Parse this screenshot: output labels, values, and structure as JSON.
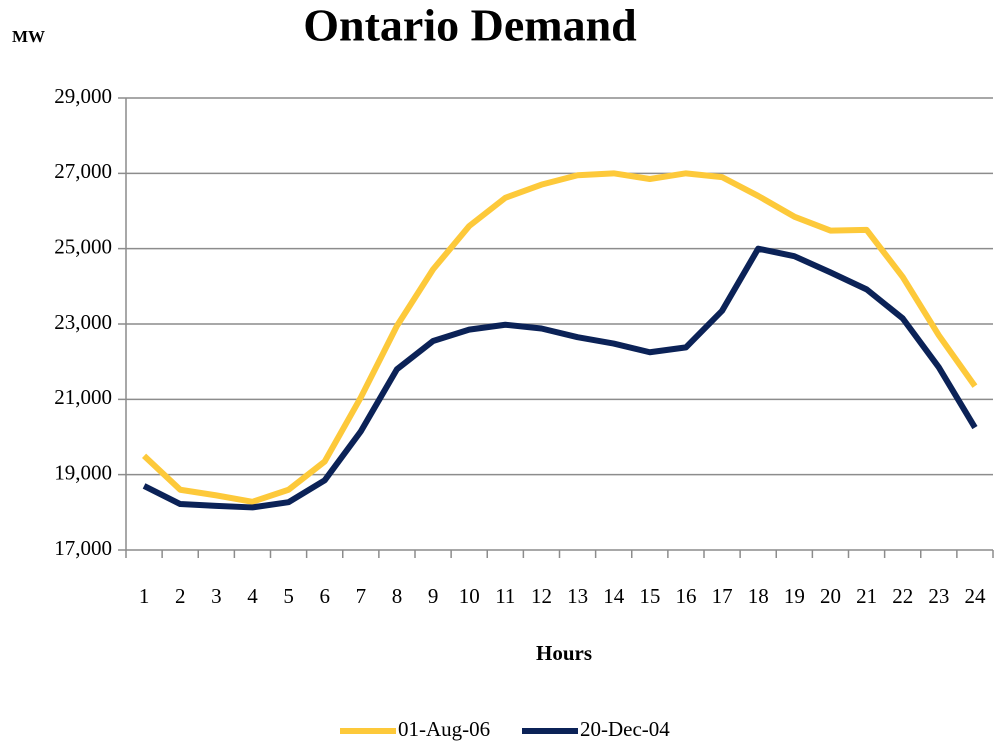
{
  "chart_data": {
    "type": "line",
    "title": "Ontario Demand",
    "y_label": "MW",
    "x_label": "Hours",
    "categories": [
      "1",
      "2",
      "3",
      "4",
      "5",
      "6",
      "7",
      "8",
      "9",
      "10",
      "11",
      "12",
      "13",
      "14",
      "15",
      "16",
      "17",
      "18",
      "19",
      "20",
      "21",
      "22",
      "23",
      "24"
    ],
    "series": [
      {
        "name": "01-Aug-06",
        "color": "#fdc93a",
        "values": [
          19500,
          18600,
          18450,
          18280,
          18600,
          19350,
          21050,
          22950,
          24450,
          25600,
          26350,
          26700,
          26950,
          27000,
          26850,
          27000,
          26900,
          26400,
          25850,
          25480,
          25500,
          24250,
          22700,
          21350
        ]
      },
      {
        "name": "20-Dec-04",
        "color": "#0b2257",
        "values": [
          18700,
          18220,
          18170,
          18130,
          18270,
          18850,
          20150,
          21800,
          22550,
          22850,
          22980,
          22880,
          22650,
          22480,
          22250,
          22380,
          23350,
          25000,
          24800,
          24370,
          23920,
          23150,
          21850,
          20250
        ]
      }
    ],
    "ylim": [
      17000,
      29000
    ],
    "yticks": [
      {
        "value": 17000,
        "label": "17,000"
      },
      {
        "value": 19000,
        "label": "19,000"
      },
      {
        "value": 21000,
        "label": "21,000"
      },
      {
        "value": 23000,
        "label": "23,000"
      },
      {
        "value": 25000,
        "label": "25,000"
      },
      {
        "value": 27000,
        "label": "27,000"
      },
      {
        "value": 29000,
        "label": "29,000"
      }
    ],
    "grid": true,
    "legend": "bottom"
  }
}
